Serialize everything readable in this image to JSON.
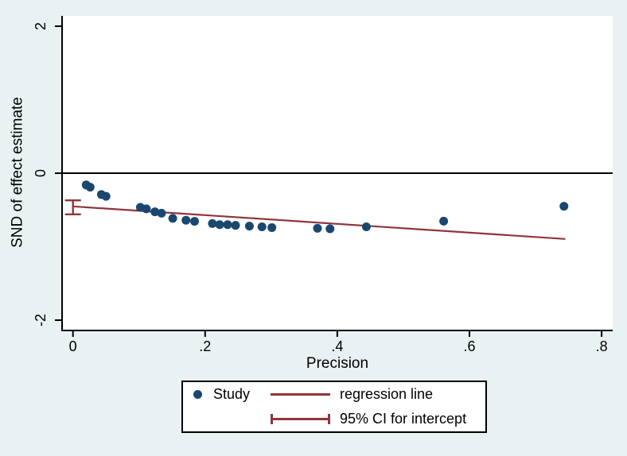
{
  "figure": {
    "background": "#eaf1f2",
    "plot_background": "#ffffff",
    "axis_color": "#000000"
  },
  "chart_data": {
    "type": "scatter",
    "title": "",
    "xlabel": "Precision",
    "ylabel": "SND of effect estimate",
    "xlim": [
      -0.017,
      0.817
    ],
    "ylim": [
      -2.13,
      2.13
    ],
    "grid": false,
    "zero_reference_line_y": 0,
    "x_ticks": [
      {
        "value": 0,
        "label": "0"
      },
      {
        "value": 0.2,
        "label": ".2"
      },
      {
        "value": 0.4,
        "label": ".4"
      },
      {
        "value": 0.6,
        "label": ".6"
      },
      {
        "value": 0.8,
        "label": ".8"
      }
    ],
    "y_ticks": [
      {
        "value": 2,
        "label": "2"
      },
      {
        "value": 0,
        "label": "0"
      },
      {
        "value": -2,
        "label": "-2"
      }
    ],
    "legend": {
      "position": "bottom-center"
    },
    "series": [
      {
        "name": "Study",
        "type": "scatter",
        "color": "#1a476f",
        "points": [
          [
            0.02,
            -0.16
          ],
          [
            0.026,
            -0.19
          ],
          [
            0.043,
            -0.29
          ],
          [
            0.05,
            -0.315
          ],
          [
            0.102,
            -0.465
          ],
          [
            0.111,
            -0.485
          ],
          [
            0.124,
            -0.525
          ],
          [
            0.134,
            -0.545
          ],
          [
            0.151,
            -0.615
          ],
          [
            0.171,
            -0.64
          ],
          [
            0.184,
            -0.655
          ],
          [
            0.211,
            -0.685
          ],
          [
            0.222,
            -0.7
          ],
          [
            0.234,
            -0.7
          ],
          [
            0.246,
            -0.71
          ],
          [
            0.267,
            -0.72
          ],
          [
            0.286,
            -0.73
          ],
          [
            0.301,
            -0.74
          ],
          [
            0.37,
            -0.75
          ],
          [
            0.389,
            -0.757
          ],
          [
            0.444,
            -0.73
          ],
          [
            0.561,
            -0.653
          ],
          [
            0.743,
            -0.45
          ]
        ]
      },
      {
        "name": "regression line",
        "type": "line",
        "color": "#90353b",
        "points": [
          [
            0.0,
            -0.452
          ],
          [
            0.745,
            -0.895
          ]
        ]
      },
      {
        "name": "95% CI for intercept",
        "type": "error-bar",
        "color": "#90353b",
        "x": 0.0,
        "low": -0.56,
        "high": -0.37
      }
    ]
  }
}
